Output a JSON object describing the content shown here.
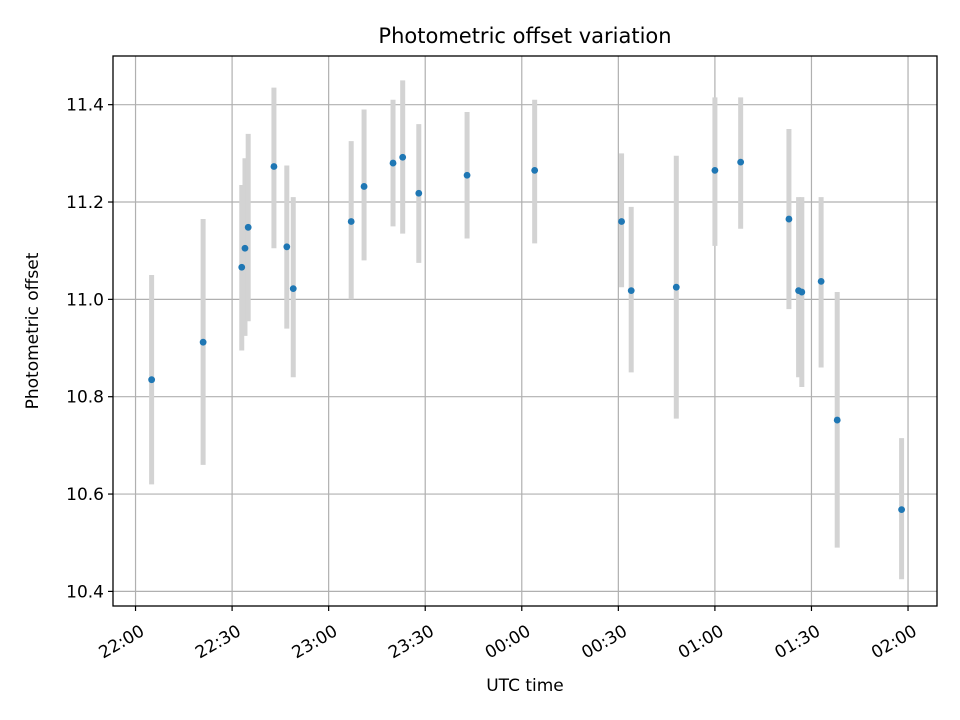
{
  "chart_data": {
    "type": "scatter",
    "title": "Photometric offset variation",
    "xlabel": "UTC time",
    "ylabel": "Photometric offset",
    "x_ticks": [
      "22:00",
      "22:30",
      "23:00",
      "23:30",
      "00:00",
      "00:30",
      "01:00",
      "01:30",
      "02:00"
    ],
    "y_ticks": [
      "10.4",
      "10.6",
      "10.8",
      "11.0",
      "11.2",
      "11.4"
    ],
    "xlim": [
      "21:53",
      "02:09"
    ],
    "ylim": [
      10.37,
      11.5
    ],
    "grid": true,
    "marker_color": "#1f77b4",
    "errorbar_color": "#d3d3d3",
    "points": [
      {
        "t": "22:05",
        "y": 10.835,
        "lo": 10.62,
        "hi": 11.05
      },
      {
        "t": "22:21",
        "y": 10.912,
        "lo": 10.66,
        "hi": 11.165
      },
      {
        "t": "22:33",
        "y": 11.066,
        "lo": 10.895,
        "hi": 11.235
      },
      {
        "t": "22:34",
        "y": 11.105,
        "lo": 10.925,
        "hi": 11.29
      },
      {
        "t": "22:35",
        "y": 11.148,
        "lo": 10.955,
        "hi": 11.34
      },
      {
        "t": "22:43",
        "y": 11.273,
        "lo": 11.105,
        "hi": 11.435
      },
      {
        "t": "22:47",
        "y": 11.108,
        "lo": 10.94,
        "hi": 11.275
      },
      {
        "t": "22:49",
        "y": 11.022,
        "lo": 10.84,
        "hi": 11.21
      },
      {
        "t": "23:07",
        "y": 11.16,
        "lo": 11.0,
        "hi": 11.325
      },
      {
        "t": "23:11",
        "y": 11.232,
        "lo": 11.08,
        "hi": 11.39
      },
      {
        "t": "23:20",
        "y": 11.28,
        "lo": 11.15,
        "hi": 11.41
      },
      {
        "t": "23:23",
        "y": 11.292,
        "lo": 11.135,
        "hi": 11.45
      },
      {
        "t": "23:28",
        "y": 11.218,
        "lo": 11.075,
        "hi": 11.36
      },
      {
        "t": "23:43",
        "y": 11.255,
        "lo": 11.125,
        "hi": 11.385
      },
      {
        "t": "00:04",
        "y": 11.265,
        "lo": 11.115,
        "hi": 11.41
      },
      {
        "t": "00:31",
        "y": 11.16,
        "lo": 11.025,
        "hi": 11.3
      },
      {
        "t": "00:34",
        "y": 11.018,
        "lo": 10.85,
        "hi": 11.19
      },
      {
        "t": "00:48",
        "y": 11.025,
        "lo": 10.755,
        "hi": 11.295
      },
      {
        "t": "01:00",
        "y": 11.265,
        "lo": 11.11,
        "hi": 11.415
      },
      {
        "t": "01:08",
        "y": 11.282,
        "lo": 11.145,
        "hi": 11.415
      },
      {
        "t": "01:23",
        "y": 11.165,
        "lo": 10.98,
        "hi": 11.35
      },
      {
        "t": "01:26",
        "y": 11.018,
        "lo": 10.84,
        "hi": 11.21
      },
      {
        "t": "01:27",
        "y": 11.015,
        "lo": 10.82,
        "hi": 11.21
      },
      {
        "t": "01:33",
        "y": 11.037,
        "lo": 10.86,
        "hi": 11.21
      },
      {
        "t": "01:38",
        "y": 10.752,
        "lo": 10.49,
        "hi": 11.015
      },
      {
        "t": "01:58",
        "y": 10.568,
        "lo": 10.425,
        "hi": 10.715
      }
    ]
  }
}
